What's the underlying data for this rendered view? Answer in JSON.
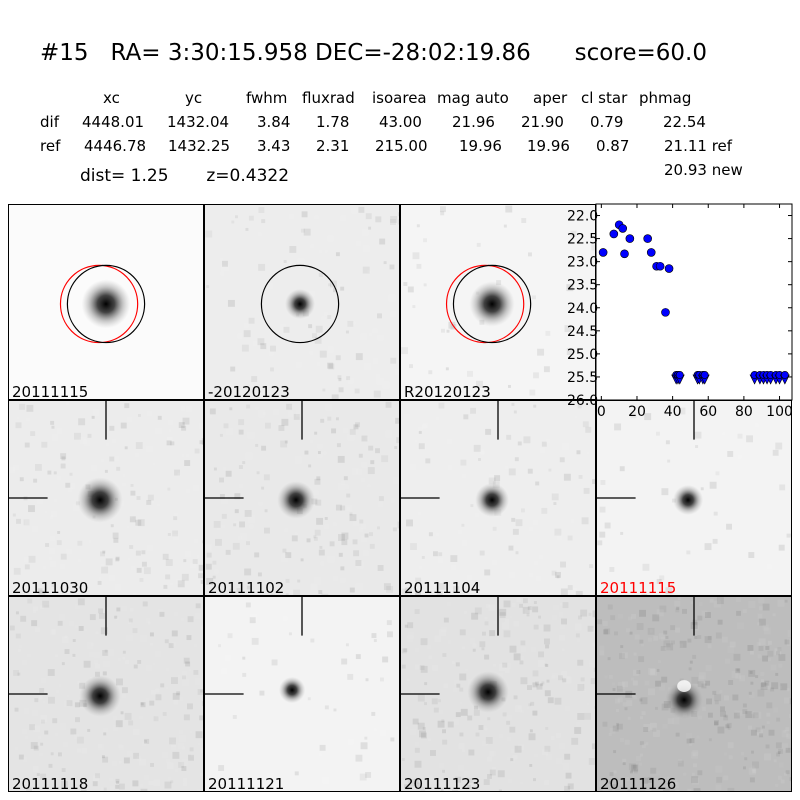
{
  "header": {
    "title_id": "#15",
    "title_ra": "RA= 3:30:15.958",
    "title_dec": "DEC=-28:02:19.86",
    "title_score": "score=60.0",
    "columns": [
      "xc",
      "yc",
      "fwhm",
      "fluxrad",
      "isoarea",
      "mag auto",
      "aper",
      "cl star",
      "phmag"
    ],
    "rows": [
      {
        "label": "dif",
        "values": [
          "4448.01",
          "1432.04",
          "3.84",
          "1.78",
          "43.00",
          "21.96",
          "21.90",
          "0.79",
          "22.54"
        ]
      },
      {
        "label": "ref",
        "values": [
          "4446.78",
          "1432.25",
          "3.43",
          "2.31",
          "215.00",
          "19.96",
          "19.96",
          "0.87",
          "21.11 ref"
        ]
      }
    ],
    "new_mag": "20.93 new",
    "dist_label": "dist=  1.25",
    "z_label": "z=0.4322"
  },
  "panels": [
    {
      "caption": "20111115",
      "bg": "#fbfbfb",
      "gray": 0,
      "blob": 13,
      "circles": true,
      "red_circle": true,
      "crosshair": false,
      "cap_red": false
    },
    {
      "caption": "-20120123",
      "bg": "#ededed",
      "gray": 2,
      "blob": 8,
      "circles": true,
      "red_circle": false,
      "crosshair": false,
      "cap_red": false
    },
    {
      "caption": "R20120123",
      "bg": "#f5f5f5",
      "gray": 1,
      "blob": 12,
      "circles": true,
      "red_circle": true,
      "crosshair": false,
      "cap_red": false
    },
    {
      "caption": "20111030",
      "bg": "#ececec",
      "gray": 3,
      "blob": 12,
      "circles": false,
      "red_circle": false,
      "crosshair": true,
      "cap_red": false
    },
    {
      "caption": "20111102",
      "bg": "#e9e9e9",
      "gray": 3,
      "blob": 10,
      "circles": false,
      "red_circle": false,
      "crosshair": true,
      "cap_red": false
    },
    {
      "caption": "20111104",
      "bg": "#eeeeee",
      "gray": 2,
      "blob": 9,
      "circles": false,
      "red_circle": false,
      "crosshair": true,
      "cap_red": false
    },
    {
      "caption": "20111115",
      "bg": "#f3f3f3",
      "gray": 1,
      "blob": 8,
      "circles": false,
      "red_circle": false,
      "crosshair": true,
      "cap_red": true
    },
    {
      "caption": "20111118",
      "bg": "#e4e4e4",
      "gray": 4,
      "blob": 11,
      "circles": false,
      "red_circle": false,
      "crosshair": true,
      "cap_red": false
    },
    {
      "caption": "20111121",
      "bg": "#f3f3f3",
      "gray": 1,
      "blob": 7,
      "circles": false,
      "red_circle": false,
      "crosshair": true,
      "cap_red": false
    },
    {
      "caption": "20111123",
      "bg": "#e2e2e2",
      "gray": 4,
      "blob": 11,
      "circles": false,
      "red_circle": false,
      "crosshair": true,
      "cap_red": false
    },
    {
      "caption": "20111126",
      "bg": "#bdbdbd",
      "gray": 5,
      "blob": 10,
      "circles": false,
      "red_circle": false,
      "crosshair": true,
      "cap_red": false
    }
  ],
  "chart_data": {
    "type": "scatter",
    "xlim": [
      -3,
      107
    ],
    "ylim": [
      26.0,
      21.75
    ],
    "y_inverted": true,
    "x_ticks": [
      0,
      20,
      40,
      60,
      80,
      100
    ],
    "y_ticks": [
      22.0,
      22.5,
      23.0,
      23.5,
      24.0,
      24.5,
      25.0,
      25.5,
      26.0
    ],
    "x_tick_labels": [
      "0",
      "20",
      "40",
      "60",
      "80",
      "100"
    ],
    "y_tick_labels": [
      "22.0",
      "22.5",
      "23.0",
      "23.5",
      "24.0",
      "24.5",
      "25.0",
      "25.5",
      "26.0"
    ],
    "marker_color": "#0000ff",
    "detections": {
      "x": [
        1,
        7,
        10,
        12,
        13,
        16,
        26,
        28,
        31,
        33,
        38,
        36
      ],
      "y": [
        22.8,
        22.4,
        22.2,
        22.28,
        22.83,
        22.5,
        22.5,
        22.8,
        23.1,
        23.1,
        23.15,
        24.1
      ]
    },
    "upper_limits": {
      "x": [
        42,
        43,
        44,
        54,
        55,
        57,
        58,
        86,
        89,
        91,
        93,
        95,
        98,
        100,
        103
      ],
      "y": [
        25.5,
        25.5,
        25.5,
        25.5,
        25.5,
        25.5,
        25.5,
        25.5,
        25.5,
        25.5,
        25.5,
        25.5,
        25.5,
        25.5,
        25.5
      ]
    }
  }
}
